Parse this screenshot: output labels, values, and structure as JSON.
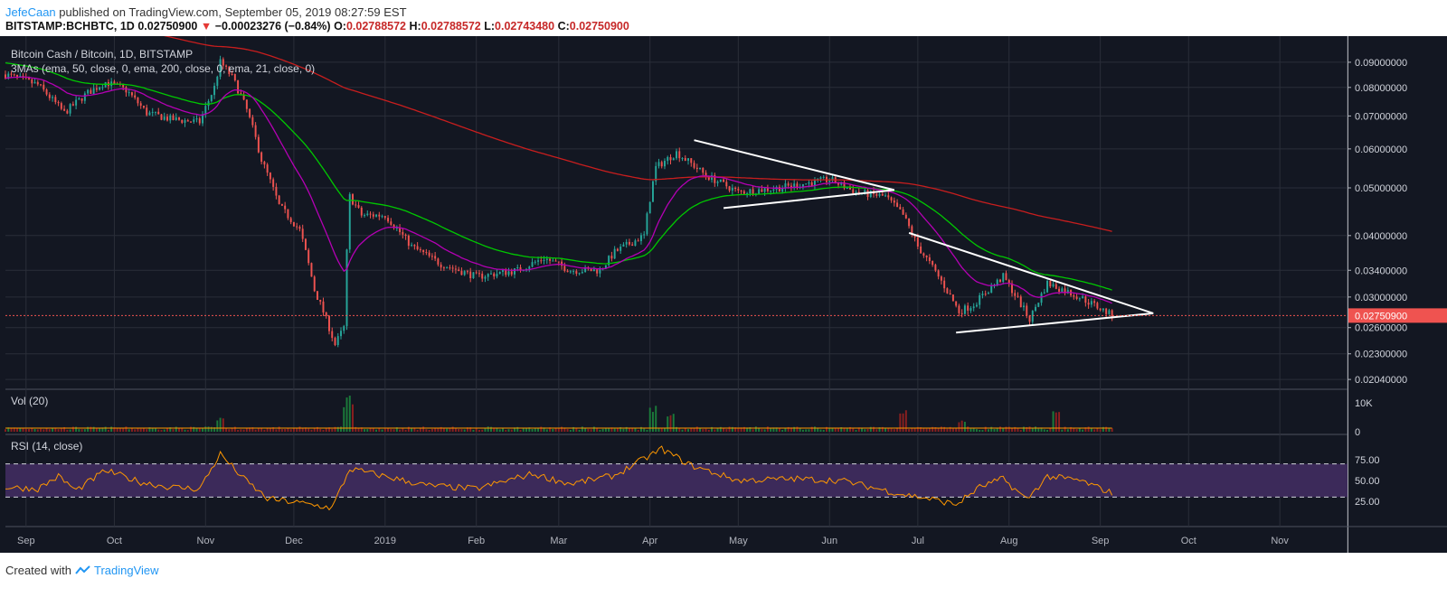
{
  "header": {
    "author": "JefeCaan",
    "published_text": " published on TradingView.com, September 05, 2019 08:27:59 EST",
    "symbol_line": "BITSTAMP:BCHBTC, 1D",
    "last_price": "0.02750900",
    "change_arrow": "▼",
    "change": "−0.00023276 (−0.84%)",
    "o_label": "O:",
    "o_value": "0.02788572",
    "h_label": "H:",
    "h_value": "0.02788572",
    "l_label": "L:",
    "l_value": "0.02743480",
    "c_label": "C:",
    "c_value": "0.02750900"
  },
  "footer": {
    "created_with": "Created with",
    "brand": "TradingView"
  },
  "colors": {
    "background": "#131722",
    "grid": "#2a2e39",
    "up": "#26a69a",
    "down": "#ef5350",
    "ema50": "#00c800",
    "ema200": "#c81e1e",
    "ema21": "#b400b4",
    "rsi": "#ff9800",
    "rsi_band": "#3c2a5a",
    "trendline": "#ffffff",
    "price_line": "#ef5350"
  },
  "chart_data": {
    "type": "candlestick",
    "title": "Bitcoin Cash / Bitcoin, 1D, BITSTAMP",
    "indicator_label": "3MAs (ema, 50, close, 0, ema, 200, close, 0, ema, 21, close, 0)",
    "price_axis_ticks": [
      "0.09000000",
      "0.08000000",
      "0.07000000",
      "0.06000000",
      "0.05000000",
      "0.04000000",
      "0.03400000",
      "0.03000000",
      "0.02600000",
      "0.02300000",
      "0.02040000"
    ],
    "price_axis_values": [
      0.09,
      0.08,
      0.07,
      0.06,
      0.05,
      0.04,
      0.034,
      0.03,
      0.026,
      0.023,
      0.0204
    ],
    "price_scale": "log",
    "last_price_label": "0.02750900",
    "last_price": 0.027509,
    "time_axis_labels": [
      "Sep",
      "Oct",
      "Nov",
      "Dec",
      "2019",
      "Feb",
      "Mar",
      "Apr",
      "May",
      "Jun",
      "Jul",
      "Aug",
      "Sep",
      "Oct",
      "Nov"
    ],
    "close_series": [
      [
        "2018-08-25",
        0.085
      ],
      [
        "2018-09-05",
        0.081
      ],
      [
        "2018-09-14",
        0.071
      ],
      [
        "2018-09-22",
        0.078
      ],
      [
        "2018-09-28",
        0.082
      ],
      [
        "2018-10-05",
        0.079
      ],
      [
        "2018-10-12",
        0.071
      ],
      [
        "2018-10-20",
        0.069
      ],
      [
        "2018-10-30",
        0.068
      ],
      [
        "2018-11-04",
        0.08
      ],
      [
        "2018-11-06",
        0.09
      ],
      [
        "2018-11-10",
        0.084
      ],
      [
        "2018-11-15",
        0.072
      ],
      [
        "2018-11-20",
        0.057
      ],
      [
        "2018-11-26",
        0.046
      ],
      [
        "2018-12-03",
        0.041
      ],
      [
        "2018-12-08",
        0.031
      ],
      [
        "2018-12-13",
        0.026
      ],
      [
        "2018-12-15",
        0.024
      ],
      [
        "2018-12-18",
        0.026
      ],
      [
        "2018-12-20",
        0.048
      ],
      [
        "2018-12-24",
        0.044
      ],
      [
        "2019-01-01",
        0.044
      ],
      [
        "2019-01-10",
        0.038
      ],
      [
        "2019-01-20",
        0.035
      ],
      [
        "2019-02-01",
        0.033
      ],
      [
        "2019-02-15",
        0.034
      ],
      [
        "2019-02-24",
        0.036
      ],
      [
        "2019-03-05",
        0.034
      ],
      [
        "2019-03-15",
        0.034
      ],
      [
        "2019-03-20",
        0.037
      ],
      [
        "2019-03-30",
        0.04
      ],
      [
        "2019-04-03",
        0.055
      ],
      [
        "2019-04-10",
        0.059
      ],
      [
        "2019-04-20",
        0.053
      ],
      [
        "2019-05-01",
        0.049
      ],
      [
        "2019-05-15",
        0.05
      ],
      [
        "2019-06-01",
        0.052
      ],
      [
        "2019-06-10",
        0.049
      ],
      [
        "2019-06-20",
        0.048
      ],
      [
        "2019-06-26",
        0.044
      ],
      [
        "2019-07-01",
        0.038
      ],
      [
        "2019-07-08",
        0.033
      ],
      [
        "2019-07-15",
        0.028
      ],
      [
        "2019-07-20",
        0.029
      ],
      [
        "2019-07-30",
        0.033
      ],
      [
        "2019-08-05",
        0.029
      ],
      [
        "2019-08-08",
        0.027
      ],
      [
        "2019-08-14",
        0.032
      ],
      [
        "2019-08-25",
        0.03
      ],
      [
        "2019-09-05",
        0.027509
      ]
    ],
    "volume": {
      "label": "Vol (20)",
      "axis_ticks": [
        "10K",
        "0"
      ]
    },
    "rsi": {
      "label": "RSI (14, close)",
      "axis_ticks": [
        "75.00",
        "50.00",
        "25.00"
      ],
      "upper": 70,
      "lower": 30,
      "series": [
        [
          "2018-08-25",
          42
        ],
        [
          "2018-09-05",
          40
        ],
        [
          "2018-09-12",
          55
        ],
        [
          "2018-09-18",
          38
        ],
        [
          "2018-09-28",
          62
        ],
        [
          "2018-10-10",
          48
        ],
        [
          "2018-10-20",
          42
        ],
        [
          "2018-10-30",
          40
        ],
        [
          "2018-11-06",
          82
        ],
        [
          "2018-11-14",
          52
        ],
        [
          "2018-11-22",
          28
        ],
        [
          "2018-12-01",
          24
        ],
        [
          "2018-12-14",
          17
        ],
        [
          "2018-12-20",
          64
        ],
        [
          "2019-01-01",
          55
        ],
        [
          "2019-01-15",
          44
        ],
        [
          "2019-02-01",
          40
        ],
        [
          "2019-02-20",
          58
        ],
        [
          "2019-03-05",
          46
        ],
        [
          "2019-03-20",
          56
        ],
        [
          "2019-04-05",
          88
        ],
        [
          "2019-04-15",
          68
        ],
        [
          "2019-05-01",
          50
        ],
        [
          "2019-05-20",
          52
        ],
        [
          "2019-06-05",
          50
        ],
        [
          "2019-06-25",
          34
        ],
        [
          "2019-07-05",
          28
        ],
        [
          "2019-07-14",
          21
        ],
        [
          "2019-07-22",
          42
        ],
        [
          "2019-07-30",
          52
        ],
        [
          "2019-08-07",
          27
        ],
        [
          "2019-08-14",
          55
        ],
        [
          "2019-08-25",
          50
        ],
        [
          "2019-09-05",
          35
        ]
      ]
    },
    "trendlines": [
      {
        "from": [
          "2019-04-16",
          0.0625
        ],
        "to": [
          "2019-06-23",
          0.0495
        ]
      },
      {
        "from": [
          "2019-04-26",
          0.0455
        ],
        "to": [
          "2019-06-23",
          0.0495
        ]
      },
      {
        "from": [
          "2019-06-28",
          0.0405
        ],
        "to": [
          "2019-09-19",
          0.0278
        ]
      },
      {
        "from": [
          "2019-07-14",
          0.0254
        ],
        "to": [
          "2019-09-19",
          0.0278
        ]
      }
    ]
  }
}
